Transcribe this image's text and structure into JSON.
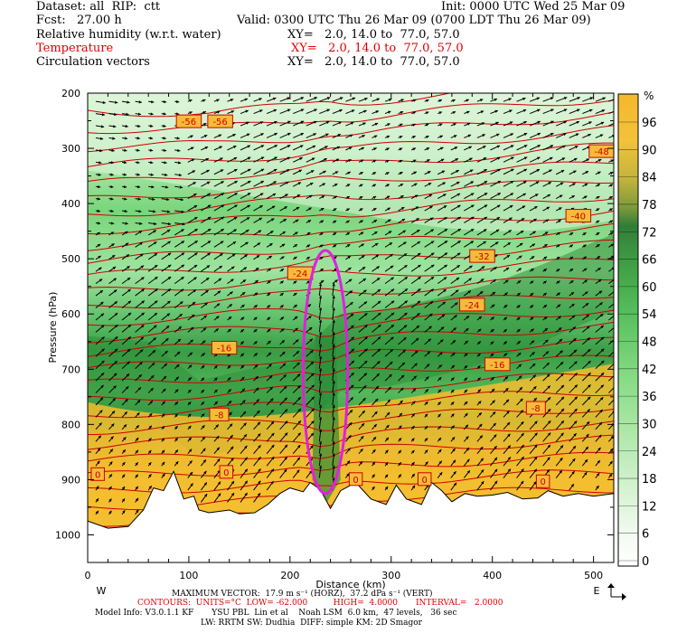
{
  "header": {
    "dataset": "Dataset: all  RIP:  ctt",
    "init": "Init: 0000 UTC Wed 25 Mar 09",
    "fcst": "Fcst:   27.00 h",
    "valid": "Valid: 0300 UTC Thu 26 Mar 09 (0700 LDT Thu 26 Mar 09)",
    "line1": "Relative humidity (w.r.t. water)",
    "line1_xy": "XY=   2.0, 14.0 to  77.0, 57.0",
    "line2": "Temperature",
    "line2_xy": "XY=   2.0, 14.0 to  77.0, 57.0",
    "line3": "Circulation vectors",
    "line3_xy": "XY=   2.0, 14.0 to  77.0, 57.0"
  },
  "footer": {
    "max_vector": "MAXIMUM VECTOR:  17.9 m s⁻¹ (HORZ),  37.2 dPa s⁻¹ (VERT)",
    "contours": "CONTOURS:  UNITS=°C  LOW= -62.000          HIGH=  4.0000       INTERVAL=   2.0000",
    "model_info": "Model Info: V3.0.1.1 KF       YSU PBL  Lin et al    Noah LSM  6.0 km,  47 levels,   36 sec",
    "physics": "LW: RRTM SW: Dudhia  DIFF: simple KM: 2D Smagor"
  },
  "colors": {
    "temperature_contour": "#d00000",
    "highlight_ellipse": "#e020e0",
    "dry": "#f0b830",
    "moist": "#40a040"
  },
  "chart_data": {
    "type": "heatmap",
    "title": "",
    "xlabel": "Distance (km)",
    "ylabel": "Pressure (hPa)",
    "xlim": [
      0,
      520
    ],
    "ylim": [
      1050,
      200
    ],
    "x_ticks": [
      0,
      100,
      200,
      300,
      400,
      500
    ],
    "y_ticks": [
      200,
      300,
      400,
      500,
      600,
      700,
      800,
      900,
      1000
    ],
    "x_end_labels": [
      "W",
      "E"
    ],
    "colorbar": {
      "unit": "%",
      "ticks": [
        0,
        6,
        12,
        18,
        24,
        30,
        36,
        42,
        48,
        54,
        60,
        66,
        72,
        78,
        84,
        90,
        96
      ]
    },
    "temperature_labels": [
      {
        "x": 100,
        "p": 251,
        "text": "-56"
      },
      {
        "x": 131,
        "p": 251,
        "text": "-56"
      },
      {
        "x": 508,
        "p": 305,
        "text": "-48"
      },
      {
        "x": 485,
        "p": 422,
        "text": "-40"
      },
      {
        "x": 390,
        "p": 495,
        "text": "-32"
      },
      {
        "x": 210,
        "p": 526,
        "text": "-24"
      },
      {
        "x": 380,
        "p": 583,
        "text": "-24"
      },
      {
        "x": 135,
        "p": 661,
        "text": "-16"
      },
      {
        "x": 405,
        "p": 691,
        "text": "-16"
      },
      {
        "x": 130,
        "p": 782,
        "text": "-8"
      },
      {
        "x": 443,
        "p": 770,
        "text": "-8"
      },
      {
        "x": 10,
        "p": 890,
        "text": "0"
      },
      {
        "x": 137,
        "p": 886,
        "text": "0"
      },
      {
        "x": 265,
        "p": 899,
        "text": "0"
      },
      {
        "x": 333,
        "p": 899,
        "text": "0"
      },
      {
        "x": 450,
        "p": 903,
        "text": "0"
      }
    ],
    "terrain_pressure": [
      [
        0,
        975
      ],
      [
        20,
        988
      ],
      [
        40,
        985
      ],
      [
        55,
        955
      ],
      [
        65,
        915
      ],
      [
        75,
        920
      ],
      [
        85,
        885
      ],
      [
        95,
        935
      ],
      [
        105,
        930
      ],
      [
        110,
        955
      ],
      [
        120,
        960
      ],
      [
        140,
        955
      ],
      [
        150,
        962
      ],
      [
        165,
        960
      ],
      [
        178,
        945
      ],
      [
        190,
        925
      ],
      [
        200,
        915
      ],
      [
        213,
        922
      ],
      [
        220,
        905
      ],
      [
        230,
        918
      ],
      [
        240,
        952
      ],
      [
        250,
        920
      ],
      [
        265,
        905
      ],
      [
        280,
        935
      ],
      [
        295,
        945
      ],
      [
        305,
        910
      ],
      [
        315,
        935
      ],
      [
        330,
        945
      ],
      [
        340,
        905
      ],
      [
        350,
        920
      ],
      [
        360,
        940
      ],
      [
        373,
        925
      ],
      [
        385,
        930
      ],
      [
        400,
        928
      ],
      [
        415,
        923
      ],
      [
        430,
        935
      ],
      [
        445,
        933
      ],
      [
        455,
        920
      ],
      [
        470,
        930
      ],
      [
        485,
        925
      ],
      [
        500,
        930
      ],
      [
        520,
        925
      ]
    ],
    "highlight_ellipse": {
      "x": 235,
      "p": 705,
      "rx": 22,
      "rp": 220
    }
  }
}
